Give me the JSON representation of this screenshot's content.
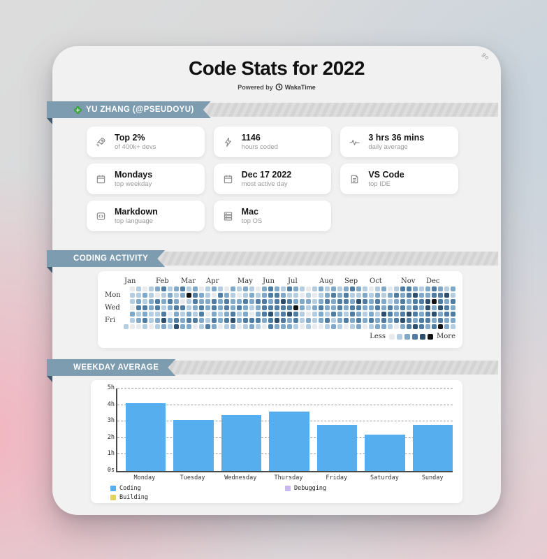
{
  "page": {
    "title": "Code Stats for 2022",
    "powered_by": "Powered by",
    "brand": "WakaTime",
    "corner_mark": "go"
  },
  "user": {
    "ribbon_label": "YU ZHANG (@PSEUDOYU)"
  },
  "sections": {
    "activity": "CODING ACTIVITY",
    "weekday": "WEEKDAY AVERAGE"
  },
  "stats_cards": [
    {
      "icon": "rocket-icon",
      "title": "Top 2%",
      "subtitle": "of 400k+ devs"
    },
    {
      "icon": "bolt-icon",
      "title": "1146",
      "subtitle": "hours coded"
    },
    {
      "icon": "pulse-icon",
      "title": "3 hrs 36 mins",
      "subtitle": "daily average"
    },
    {
      "icon": "calendar-icon",
      "title": "Mondays",
      "subtitle": "top weekday"
    },
    {
      "icon": "calendar-icon",
      "title": "Dec 17 2022",
      "subtitle": "most active day"
    },
    {
      "icon": "note-icon",
      "title": "VS Code",
      "subtitle": "top IDE"
    },
    {
      "icon": "code-file-icon",
      "title": "Markdown",
      "subtitle": "top language"
    },
    {
      "icon": "layers-icon",
      "title": "Mac",
      "subtitle": "top OS"
    }
  ],
  "theme": {
    "ribbon_blue": "#7e9cb0",
    "ribbon_fold": "#42596c",
    "avatar_green": "#3aa23a",
    "bar_blue": "#56aeee",
    "building_yellow": "#e2d35e",
    "debugging_purple": "#c9b8ee"
  },
  "chart_data": [
    {
      "type": "heatmap",
      "title": "CODING ACTIVITY",
      "months": [
        "Jan",
        "Feb",
        "Mar",
        "Apr",
        "May",
        "Jun",
        "Jul",
        "Aug",
        "Sep",
        "Oct",
        "Nov",
        "Dec"
      ],
      "month_start_weeks": [
        0,
        5,
        9,
        13,
        18,
        22,
        26,
        31,
        35,
        39,
        44,
        48
      ],
      "day_axis_labels": [
        "Mon",
        "Wed",
        "Fri"
      ],
      "day_axis_rows": [
        1,
        3,
        5
      ],
      "legend_less": "Less",
      "legend_more": "More",
      "level_colors": [
        "#e8eaee",
        "#b5cde1",
        "#7fa8c9",
        "#4f7ca3",
        "#2d4f6d",
        "#121212"
      ],
      "weeks": [
        "------1",
        "0110210",
        "1123120",
        "0213231",
        "1122110",
        "2033121",
        "3121342",
        "1232021",
        "2123234",
        "3203122",
        "1511232",
        "2332130",
        "0223321",
        "1122013",
        "2033232",
        "1322120",
        "0233231",
        "2122342",
        "1023120",
        "2132231",
        "1221032",
        "0132231",
        "2233320",
        "3323433",
        "2333242",
        "1243332",
        "3133422",
        "2125331",
        "1022110",
        "0121021",
        "1012110",
        "2123220",
        "1232131",
        "2322312",
        "1233221",
        "2332130",
        "3123321",
        "2143232",
        "1232120",
        "0122231",
        "1233122",
        "2122432",
        "0213321",
        "1322230",
        "3233342",
        "3322433",
        "2433324",
        "1232233",
        "2244332",
        "3352423",
        "2334235",
        "1423322",
        "2132321"
      ]
    },
    {
      "type": "bar",
      "title": "WEEKDAY AVERAGE",
      "categories": [
        "Monday",
        "Tuesday",
        "Wednesday",
        "Thursday",
        "Friday",
        "Saturday",
        "Sunday"
      ],
      "series": [
        {
          "name": "Coding",
          "color": "#56aeee",
          "values": [
            4.1,
            3.1,
            3.4,
            3.6,
            2.8,
            2.2,
            2.8
          ]
        }
      ],
      "y_ticks": [
        "0s",
        "1h",
        "2h",
        "3h",
        "4h",
        "5h"
      ],
      "ylim": [
        0,
        5
      ],
      "grid": "dashed-horizontal",
      "legend_position": "bottom",
      "legend": [
        {
          "label": "Coding",
          "color": "#56aeee"
        },
        {
          "label": "Building",
          "color": "#e2d35e"
        },
        {
          "label": "Debugging",
          "color": "#c9b8ee"
        }
      ]
    }
  ]
}
